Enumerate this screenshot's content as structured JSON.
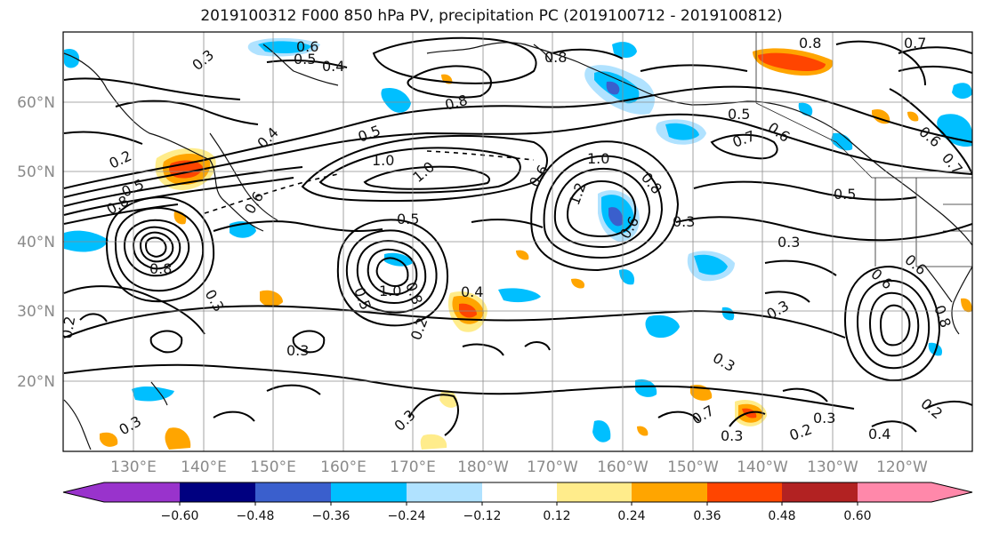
{
  "title": "2019100312 F000 850 hPa PV, precipitation PC (2019100712 - 2019100812)",
  "map": {
    "lat_labels": [
      "60°N",
      "50°N",
      "40°N",
      "30°N",
      "20°N"
    ],
    "lon_labels": [
      "130°E",
      "140°E",
      "150°E",
      "160°E",
      "170°E",
      "180°W",
      "170°W",
      "160°W",
      "150°W",
      "140°W",
      "130°W",
      "120°W"
    ],
    "contour_labels": [
      "0.6",
      "0.5",
      "0.4",
      "0.3",
      "0.2",
      "0.5",
      "0.8",
      "0.4",
      "0.6",
      "0.5",
      "1.0",
      "0.8",
      "0.8",
      "1.0",
      "1.0",
      "0.6",
      "1.2",
      "0.6",
      "0.8",
      "0.5",
      "0.6",
      "0.7",
      "0.5",
      "0.3",
      "0.3",
      "0.3",
      "0.6",
      "0.5",
      "0.8",
      "0.3",
      "0.5",
      "1.0",
      "0.8",
      "0.3",
      "0.2",
      "0.4",
      "0.3",
      "0.2",
      "0.3",
      "0.3",
      "0.7",
      "0.3",
      "0.2",
      "0.3",
      "0.4",
      "0.2",
      "0.6",
      "0.8",
      "0.7",
      "0.8",
      "0.6",
      "0.7"
    ]
  },
  "colorbar": {
    "tick_labels": [
      "−0.60",
      "−0.48",
      "−0.36",
      "−0.24",
      "−0.12",
      "0.12",
      "0.24",
      "0.36",
      "0.48",
      "0.60"
    ],
    "colors": [
      "#9933cc",
      "#000080",
      "#3a5fcd",
      "#00bfff",
      "#b0e2ff",
      "#ffffff",
      "#ffec8b",
      "#ffa500",
      "#ff4500",
      "#b22222",
      "#ff88aa"
    ]
  }
}
